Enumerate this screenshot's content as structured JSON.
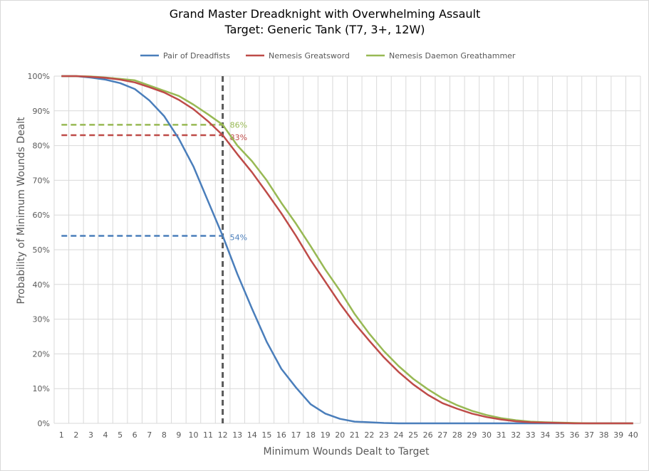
{
  "chart_data": {
    "type": "line",
    "title": "Grand Master Dreadknight with Overwhelming Assault",
    "subtitle": "Target: Generic Tank (T7, 3+, 12W)",
    "xlabel": "Minimum Wounds Dealt  to Target",
    "ylabel": "Probability of Minimum Wounds Dealt",
    "x": [
      1,
      2,
      3,
      4,
      5,
      6,
      7,
      8,
      9,
      10,
      11,
      12,
      13,
      14,
      15,
      16,
      17,
      18,
      19,
      20,
      21,
      22,
      23,
      24,
      25,
      26,
      27,
      28,
      29,
      30,
      31,
      32,
      33,
      34,
      35,
      36,
      37,
      38,
      39,
      40
    ],
    "ylim": [
      0,
      100
    ],
    "yticks": [
      "0%",
      "10%",
      "20%",
      "30%",
      "40%",
      "50%",
      "60%",
      "70%",
      "80%",
      "90%",
      "100%"
    ],
    "grid": true,
    "legend_position": "top",
    "series": [
      {
        "name": "Pair of Dreadfists",
        "color": "#4a7ebb",
        "values": [
          100,
          100,
          99.6,
          99,
          98,
          96.3,
          93,
          88.5,
          82,
          74,
          64,
          54,
          43,
          33,
          23.5,
          15.7,
          10.3,
          5.5,
          2.8,
          1.3,
          0.5,
          0.3,
          0.1,
          0,
          0,
          0,
          0,
          0,
          0,
          0,
          0,
          0,
          0,
          0,
          0,
          0,
          0,
          0,
          0,
          0
        ]
      },
      {
        "name": "Nemesis Greatsword",
        "color": "#be4b48",
        "values": [
          100,
          100,
          99.8,
          99.5,
          99,
          98.2,
          96.8,
          95.3,
          93.2,
          90.5,
          87,
          83,
          77.5,
          72.3,
          66.5,
          60.5,
          54,
          47,
          40.8,
          34.5,
          28.8,
          23.8,
          19,
          14.8,
          11.2,
          8.2,
          5.8,
          4.2,
          2.8,
          1.8,
          1.1,
          0.6,
          0.3,
          0.2,
          0.1,
          0,
          0,
          0,
          0,
          0
        ]
      },
      {
        "name": "Nemesis Daemon Greathammer",
        "color": "#98b954",
        "values": [
          100,
          100,
          99.9,
          99.6,
          99.2,
          98.8,
          97.3,
          95.8,
          94.3,
          91.8,
          89,
          86,
          80,
          75.5,
          70,
          63.5,
          57.5,
          51,
          44.3,
          38.2,
          31.5,
          25.8,
          20.8,
          16.5,
          12.8,
          9.8,
          7.2,
          5.2,
          3.6,
          2.4,
          1.5,
          0.9,
          0.5,
          0.3,
          0.2,
          0.1,
          0,
          0,
          0,
          0
        ]
      }
    ],
    "reference_x": 12,
    "annotations": [
      {
        "series": 2,
        "x": 12,
        "y": 86,
        "label": "86%"
      },
      {
        "series": 1,
        "x": 12,
        "y": 83,
        "label": "83%"
      },
      {
        "series": 0,
        "x": 12,
        "y": 54,
        "label": "54%"
      }
    ],
    "reference_line_color": "#595959"
  }
}
